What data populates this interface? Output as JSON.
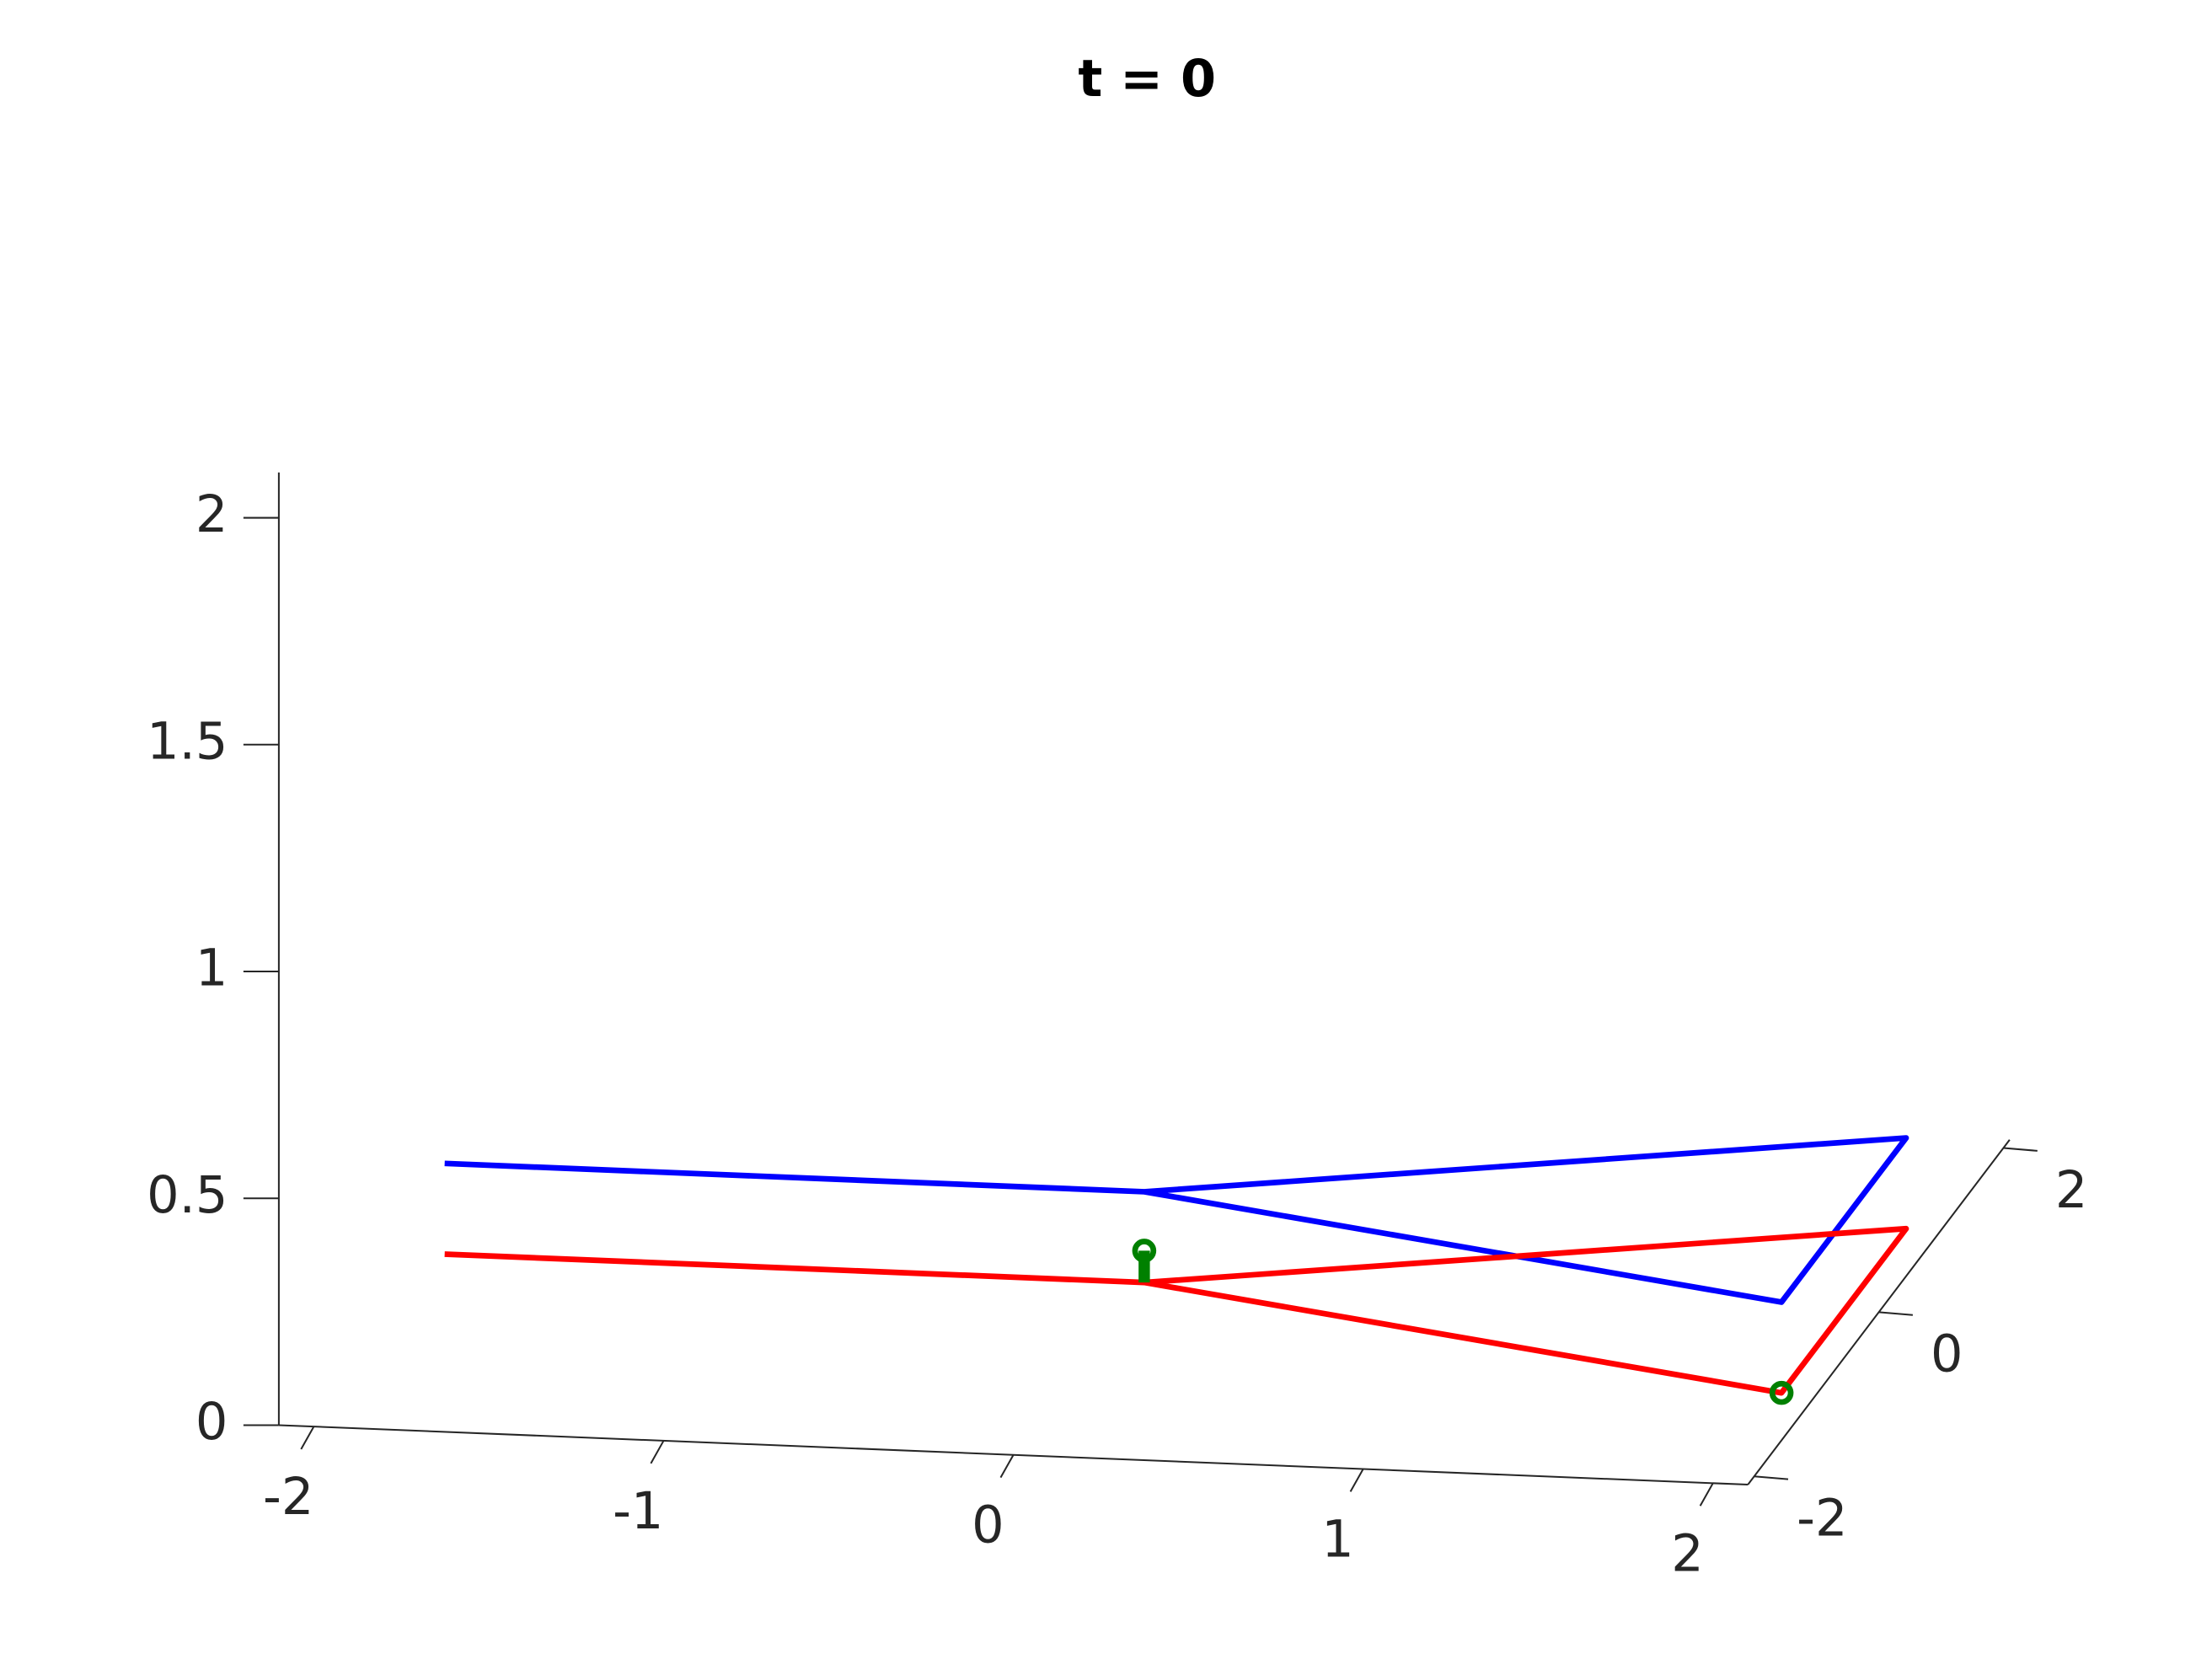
{
  "chart_data": {
    "type": "line3d",
    "title": "t = 0",
    "xlim": [
      -2.1,
      2.1
    ],
    "ylim": [
      -2.1,
      2.1
    ],
    "zlim": [
      0,
      2.1
    ],
    "xticks": [
      -2,
      -1,
      0,
      1,
      2
    ],
    "yticks": [
      -2,
      0,
      2
    ],
    "zticks": [
      0,
      0.5,
      1,
      1.5,
      2
    ],
    "series": [
      {
        "color": "#0000ff",
        "x": [
          -2,
          0,
          2,
          2,
          0
        ],
        "y": [
          0,
          0,
          -1,
          1,
          0
        ],
        "z": [
          0.2,
          0.2,
          0.2,
          0.2,
          0.2
        ]
      },
      {
        "color": "#ff0000",
        "x": [
          -2,
          0,
          2,
          2,
          0
        ],
        "y": [
          0,
          0,
          -1,
          1,
          0
        ],
        "z": [
          0,
          0,
          0,
          0,
          0
        ]
      },
      {
        "color": "#008000",
        "marker": "o",
        "line": false,
        "stem": true,
        "x": [
          0,
          2
        ],
        "y": [
          0,
          -1
        ],
        "z": [
          0.07,
          0
        ]
      }
    ]
  }
}
